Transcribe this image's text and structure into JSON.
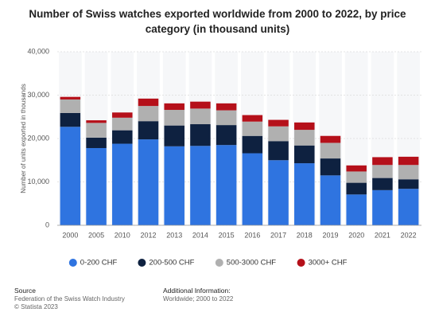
{
  "chart_data": {
    "type": "stacked_bar",
    "title": "Number of Swiss watches exported worldwide from 2000 to 2022, by price category (in thousand units)",
    "y_label": "Number of units exported in thousands",
    "categories": [
      "2000",
      "2005",
      "2010",
      "2012",
      "2013",
      "2014",
      "2015",
      "2016",
      "2017",
      "2018",
      "2019",
      "2020",
      "2021",
      "2022"
    ],
    "series": [
      {
        "name": "0-200 CHF",
        "color": "#2f74e0",
        "values": [
          22700,
          17800,
          18800,
          19800,
          18200,
          18300,
          18500,
          16600,
          15000,
          14300,
          11500,
          7100,
          8100,
          8400
        ]
      },
      {
        "name": "200-500 CHF",
        "color": "#0e2140",
        "values": [
          3200,
          2400,
          3100,
          4200,
          4800,
          5000,
          4600,
          4000,
          4400,
          4100,
          3900,
          2700,
          2800,
          2200
        ]
      },
      {
        "name": "500-3000 CHF",
        "color": "#b0b0b0",
        "values": [
          3100,
          3400,
          2900,
          3500,
          3600,
          3600,
          3400,
          3300,
          3400,
          3600,
          3600,
          2600,
          3000,
          3300
        ]
      },
      {
        "name": "3000+ CHF",
        "color": "#b5101a",
        "values": [
          600,
          600,
          1200,
          1700,
          1500,
          1600,
          1600,
          1500,
          1500,
          1700,
          1600,
          1400,
          1800,
          1900
        ]
      }
    ],
    "ylim": [
      0,
      40000
    ],
    "yticks": [
      0,
      {
        "value": 10000,
        "label": "10,000"
      },
      {
        "value": 20000,
        "label": "20,000"
      },
      {
        "value": 30000,
        "label": "30,000"
      },
      {
        "value": 40000,
        "label": "40,000"
      }
    ],
    "grid": true,
    "legend": "bottom"
  },
  "footer": {
    "source_heading": "Source",
    "source_lines": [
      "Federation of the Swiss Watch Industry",
      "© Statista 2023"
    ],
    "info_heading": "Additional Information:",
    "info_lines": [
      "Worldwide; 2000 to 2022"
    ]
  }
}
